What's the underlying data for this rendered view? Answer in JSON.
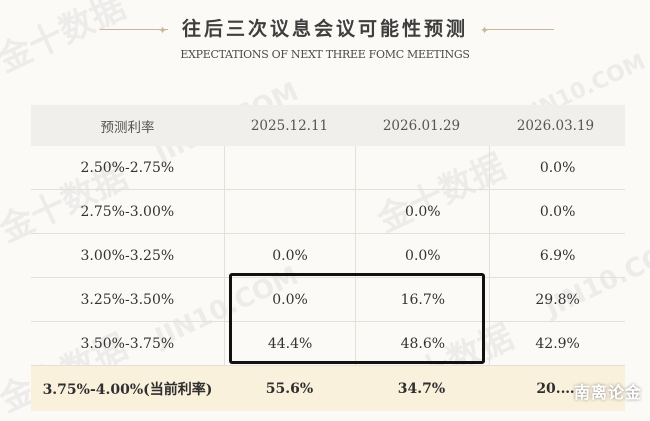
{
  "header": {
    "title": "往后三次议息会议可能性预测",
    "subtitle": "EXPECTATIONS OF NEXT THREE FOMC MEETINGS"
  },
  "table": {
    "columns": [
      "预测利率",
      "2025.12.11",
      "2026.01.29",
      "2026.03.19"
    ],
    "rows": [
      {
        "rate": "2.50%-2.75%",
        "values": [
          "",
          "",
          "0.0%"
        ]
      },
      {
        "rate": "2.75%-3.00%",
        "values": [
          "",
          "0.0%",
          "0.0%"
        ]
      },
      {
        "rate": "3.00%-3.25%",
        "values": [
          "0.0%",
          "0.0%",
          "6.9%"
        ]
      },
      {
        "rate": "3.25%-3.50%",
        "values": [
          "0.0%",
          "16.7%",
          "29.8%"
        ]
      },
      {
        "rate": "3.50%-3.75%",
        "values": [
          "44.4%",
          "48.6%",
          "42.9%"
        ]
      },
      {
        "rate": "3.75%-4.00%(当前利率)",
        "values": [
          "55.6%",
          "34.7%",
          "20.…"
        ],
        "current": true
      }
    ]
  },
  "watermarks": [
    "金十数据",
    "JIN10.COM"
  ],
  "corner_logo": "南离论金",
  "colors": {
    "header_bg": "#f1efeb",
    "current_row_bg": "#faf1dc",
    "highlight_border": "#111111"
  }
}
